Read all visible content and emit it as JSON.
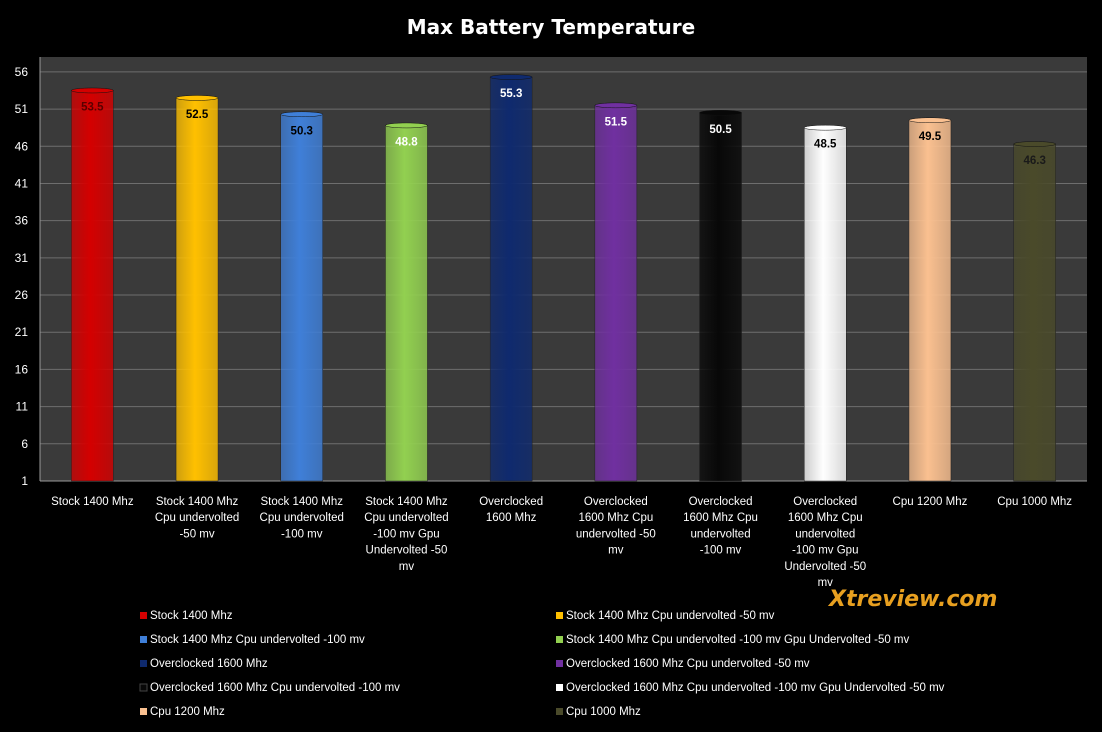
{
  "chart_data": {
    "type": "bar",
    "title": "Max Battery Temperature",
    "watermark": "Xtreview.com",
    "background": "#000000",
    "plot_background": "#3a3a3a",
    "grid": true,
    "legend_position": "bottom",
    "ylim": [
      1,
      58
    ],
    "yticks": [
      1,
      6,
      11,
      16,
      21,
      26,
      31,
      36,
      41,
      46,
      51,
      56
    ],
    "categories": [
      "Stock 1400 Mhz",
      "Stock 1400 Mhz Cpu undervolted -50 mv",
      "Stock 1400 Mhz Cpu undervolted -100 mv",
      "Stock 1400 Mhz Cpu undervolted -100 mv Gpu Undervolted -50 mv",
      "Overclocked 1600 Mhz",
      "Overclocked 1600 Mhz Cpu undervolted -50 mv",
      "Overclocked 1600 Mhz Cpu undervolted -100 mv",
      "Overclocked 1600 Mhz Cpu undervolted -100 mv Gpu Undervolted -50 mv",
      "Cpu 1200 Mhz",
      "Cpu 1000 Mhz"
    ],
    "values": [
      53.5,
      52.5,
      50.3,
      48.8,
      55.3,
      51.5,
      50.5,
      48.5,
      49.5,
      46.3
    ],
    "value_labels": [
      "53.5",
      "52.5",
      "50.3",
      "48.8",
      "55.3",
      "51.5",
      "50.5",
      "48.5",
      "49.5",
      "46.3"
    ],
    "colors": [
      "#d40000",
      "#ffc000",
      "#3f7fd8",
      "#92d050",
      "#0f2a6e",
      "#7030a0",
      "#080808",
      "#ffffff",
      "#fac090",
      "#4a4a2a"
    ],
    "label_colors": [
      "#5a0000",
      "#000000",
      "#000000",
      "#ffffff",
      "#ffffff",
      "#ffffff",
      "#ffffff",
      "#000000",
      "#000000",
      "#1a1a1a"
    ],
    "legend": [
      "Stock 1400 Mhz",
      "Stock 1400 Mhz  Cpu undervolted -50 mv",
      "Stock 1400 Mhz  Cpu undervolted -100 mv",
      "Stock 1400 Mhz  Cpu undervolted -100 mv Gpu Undervolted -50 mv",
      "Overclocked 1600 Mhz",
      "Overclocked 1600 Mhz Cpu undervolted -50 mv",
      "Overclocked 1600 Mhz Cpu undervolted -100 mv",
      "Overclocked 1600 Mhz Cpu undervolted -100 mv Gpu Undervolted -50 mv",
      "Cpu 1200 Mhz",
      "Cpu 1000 Mhz"
    ]
  }
}
